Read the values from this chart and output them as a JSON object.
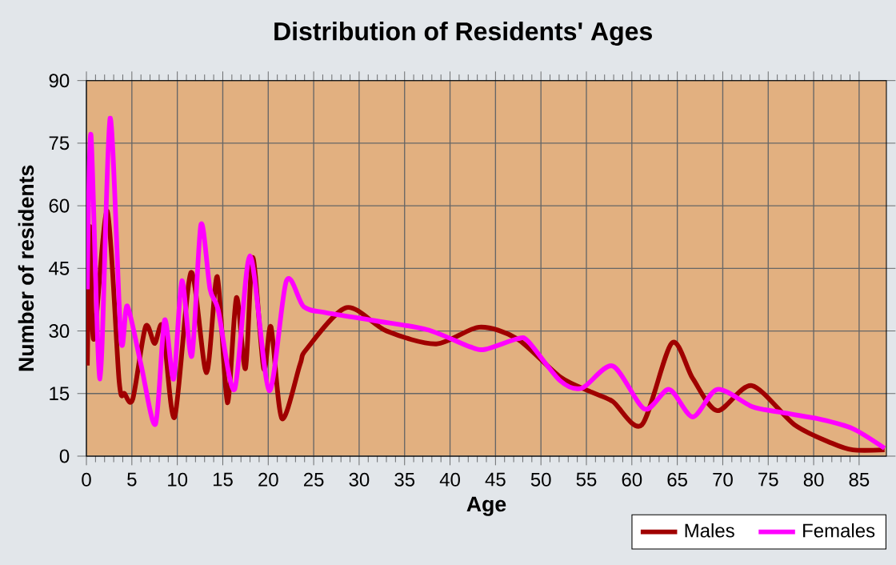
{
  "chart_data": {
    "type": "line",
    "title": "Distribution of Residents' Ages",
    "xlabel": "Age",
    "ylabel": "Number of residents",
    "xlim": [
      0,
      88
    ],
    "ylim": [
      0,
      90
    ],
    "xticks": [
      0,
      5,
      10,
      15,
      20,
      25,
      30,
      35,
      40,
      45,
      50,
      55,
      60,
      65,
      70,
      75,
      80,
      85
    ],
    "yticks": [
      0,
      15,
      30,
      45,
      60,
      75,
      90
    ],
    "grid": true,
    "legend": "bottom right",
    "marker": "none",
    "line_style": "solid",
    "series": [
      {
        "name": "Males",
        "color": "#a00000",
        "x": [
          0.1,
          0.4,
          0.8,
          2.3,
          3.6,
          4.2,
          5.1,
          6.5,
          7.5,
          8.4,
          9.7,
          11.5,
          13.2,
          14.4,
          15.5,
          16.5,
          17.5,
          18.3,
          19.5,
          20.3,
          21.5,
          23.5,
          24.2,
          28.6,
          33,
          38.5,
          43.2,
          47.4,
          52.1,
          55.6,
          57.9,
          61.1,
          64.4,
          66.7,
          69.4,
          73.2,
          77.9,
          82,
          84.3,
          87.8
        ],
        "values": [
          21.7,
          55,
          28,
          58.7,
          18,
          15,
          13.7,
          31,
          27,
          31,
          9.3,
          44,
          20,
          43,
          12.8,
          38,
          21,
          47.6,
          21,
          31,
          9,
          22,
          25.6,
          35.6,
          30,
          26.9,
          30.9,
          28.1,
          19,
          15.3,
          13.1,
          7.5,
          27.1,
          18.6,
          10.9,
          16.9,
          7.5,
          3.1,
          1.5,
          1.5
        ]
      },
      {
        "name": "Females",
        "color": "#ff00ff",
        "x": [
          0.1,
          0.5,
          1.5,
          2.6,
          3.8,
          4.5,
          6,
          7.6,
          8.6,
          9.6,
          10.5,
          11.6,
          12.6,
          13.6,
          14.5,
          16.3,
          18,
          20.1,
          22,
          23.9,
          26.3,
          31.6,
          37.5,
          42.2,
          43.9,
          47.4,
          48.6,
          52.1,
          54.5,
          57.9,
          61.4,
          64.1,
          66.7,
          69.4,
          73.2,
          76.1,
          80.8,
          84.3,
          87.8
        ],
        "values": [
          40,
          77,
          18.5,
          81,
          28,
          36,
          22,
          7.7,
          32.6,
          18.5,
          42,
          24,
          55.5,
          40,
          35,
          16,
          48,
          15.7,
          42,
          35.8,
          34.4,
          32.5,
          30.3,
          26.2,
          25.6,
          28.1,
          27.5,
          18.1,
          16.3,
          21.6,
          11.3,
          16,
          9.4,
          16,
          11.9,
          10.6,
          8.8,
          6.6,
          1.9
        ]
      }
    ]
  }
}
